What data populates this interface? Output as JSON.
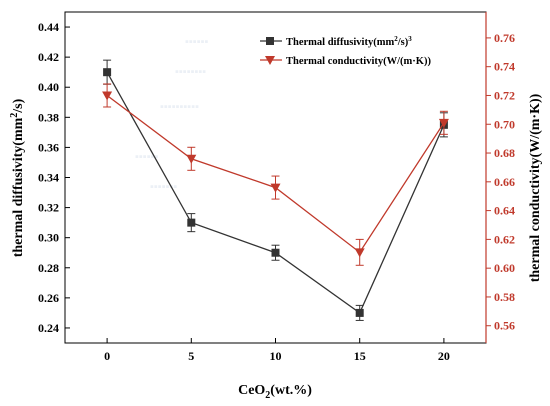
{
  "chart_data": {
    "type": "line",
    "x": [
      0,
      5,
      10,
      15,
      20
    ],
    "xlabel": {
      "main": "CeO",
      "sub": "2",
      "rest": "(wt.%)"
    },
    "x_ticks": [
      "0",
      "5",
      "10",
      "15",
      "20"
    ],
    "xlim": [
      -2.5,
      22.5
    ],
    "left_axis": {
      "label": {
        "main": "thermal diffusivity(mm",
        "sup": "2",
        "rest": "/s)"
      },
      "ylim": [
        0.23,
        0.45
      ],
      "ticks": [
        "0.24",
        "0.26",
        "0.28",
        "0.30",
        "0.32",
        "0.34",
        "0.36",
        "0.38",
        "0.40",
        "0.42",
        "0.44"
      ],
      "color": "#000000"
    },
    "right_axis": {
      "label": "thermal conductivity(W/(m·K))",
      "ylim": [
        0.548,
        0.778
      ],
      "ticks": [
        "0.56",
        "0.58",
        "0.60",
        "0.62",
        "0.64",
        "0.66",
        "0.68",
        "0.70",
        "0.72",
        "0.74",
        "0.76"
      ],
      "color": "#c0392b"
    },
    "series": [
      {
        "name": {
          "main": "Thermal diffusivity(mm",
          "sup": "2",
          "rest": "/s)",
          "sup2": "3"
        },
        "axis": "left",
        "marker": "square",
        "color": "#333333",
        "values": [
          0.41,
          0.31,
          0.29,
          0.25,
          0.375
        ],
        "errors": [
          0.008,
          0.006,
          0.005,
          0.005,
          0.008
        ]
      },
      {
        "name": "Thermal conductivity(W/(m·K))",
        "axis": "right",
        "marker": "triangle-down",
        "color": "#c0392b",
        "values": [
          0.72,
          0.676,
          0.656,
          0.611,
          0.701
        ],
        "errors": [
          0.008,
          0.008,
          0.008,
          0.009,
          0.008
        ]
      }
    ],
    "legend_position": "top-right"
  }
}
